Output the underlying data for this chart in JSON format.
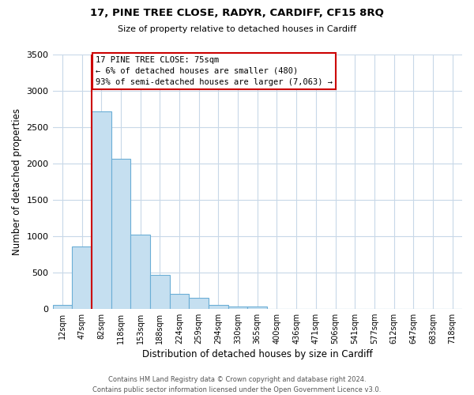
{
  "title": "17, PINE TREE CLOSE, RADYR, CARDIFF, CF15 8RQ",
  "subtitle": "Size of property relative to detached houses in Cardiff",
  "xlabel": "Distribution of detached houses by size in Cardiff",
  "ylabel": "Number of detached properties",
  "bar_color": "#c5dff0",
  "bar_edge_color": "#6baed6",
  "marker_line_color": "#cc0000",
  "categories": [
    "12sqm",
    "47sqm",
    "82sqm",
    "118sqm",
    "153sqm",
    "188sqm",
    "224sqm",
    "259sqm",
    "294sqm",
    "330sqm",
    "365sqm",
    "400sqm",
    "436sqm",
    "471sqm",
    "506sqm",
    "541sqm",
    "577sqm",
    "612sqm",
    "647sqm",
    "683sqm",
    "718sqm"
  ],
  "values": [
    55,
    860,
    2720,
    2060,
    1020,
    460,
    205,
    145,
    55,
    30,
    30,
    0,
    0,
    0,
    0,
    0,
    0,
    0,
    0,
    0,
    0
  ],
  "annotation_text": "17 PINE TREE CLOSE: 75sqm\n← 6% of detached houses are smaller (480)\n93% of semi-detached houses are larger (7,063) →",
  "ylim": [
    0,
    3500
  ],
  "yticks": [
    0,
    500,
    1000,
    1500,
    2000,
    2500,
    3000,
    3500
  ],
  "footnote": "Contains HM Land Registry data © Crown copyright and database right 2024.\nContains public sector information licensed under the Open Government Licence v3.0.",
  "bg_color": "#ffffff",
  "grid_color": "#c8d8e8"
}
